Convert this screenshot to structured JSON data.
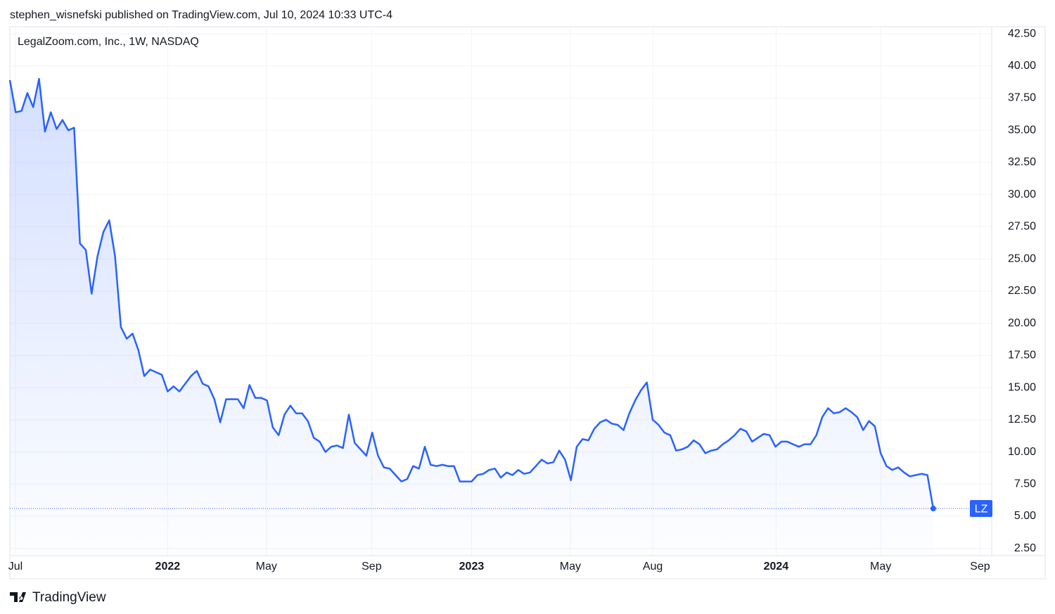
{
  "header": "stephen_wisnefski published on TradingView.com, Jul 10, 2024 10:33 UTC-4",
  "footer": "TradingView",
  "chart_data": {
    "type": "line",
    "title": "LegalZoom.com, Inc., 1W, NASDAQ",
    "series": [
      {
        "name": "LZ",
        "color": "#2962ff",
        "values": [
          38.9,
          36.4,
          36.5,
          37.9,
          36.8,
          39.0,
          34.9,
          36.4,
          35.1,
          35.8,
          35.0,
          35.2,
          26.2,
          25.7,
          22.3,
          25.2,
          27.1,
          28.0,
          25.2,
          19.7,
          18.8,
          19.2,
          17.9,
          15.9,
          16.4,
          16.2,
          16.0,
          14.7,
          15.1,
          14.7,
          15.3,
          15.9,
          16.3,
          15.3,
          15.1,
          14.1,
          12.3,
          14.1,
          14.1,
          14.1,
          13.4,
          15.2,
          14.2,
          14.2,
          14.0,
          11.9,
          11.3,
          12.9,
          13.6,
          13.0,
          13.0,
          12.4,
          11.1,
          10.8,
          10.0,
          10.4,
          10.5,
          10.3,
          12.9,
          10.7,
          10.2,
          9.7,
          11.5,
          9.7,
          8.8,
          8.7,
          8.2,
          7.7,
          7.9,
          8.9,
          8.7,
          10.4,
          9.0,
          8.9,
          9.0,
          8.9,
          8.9,
          7.7,
          7.7,
          7.7,
          8.2,
          8.3,
          8.6,
          8.7,
          8.0,
          8.4,
          8.2,
          8.6,
          8.3,
          8.4,
          8.9,
          9.4,
          9.1,
          9.2,
          10.1,
          9.4,
          7.8,
          10.4,
          11.0,
          10.9,
          11.8,
          12.3,
          12.5,
          12.2,
          12.1,
          11.7,
          13.0,
          14.0,
          14.8,
          15.4,
          12.5,
          12.1,
          11.5,
          11.3,
          10.1,
          10.2,
          10.4,
          10.9,
          10.6,
          9.9,
          10.1,
          10.2,
          10.6,
          10.9,
          11.3,
          11.8,
          11.6,
          10.8,
          11.1,
          11.4,
          11.3,
          10.4,
          10.8,
          10.8,
          10.6,
          10.4,
          10.6,
          10.6,
          11.3,
          12.7,
          13.4,
          13.0,
          13.1,
          13.4,
          13.1,
          12.7,
          11.7,
          12.4,
          12.0,
          9.9,
          8.9,
          8.6,
          8.8,
          8.4,
          8.1,
          8.2,
          8.3,
          8.2,
          5.6
        ]
      }
    ],
    "xlim": [
      0,
      168
    ],
    "xticks": [
      {
        "value": 0.96,
        "label": "Jul"
      },
      {
        "value": 27.0,
        "label": "2022"
      },
      {
        "value": 43.9,
        "label": "May"
      },
      {
        "value": 61.9,
        "label": "Sep"
      },
      {
        "value": 79.0,
        "label": "2023"
      },
      {
        "value": 95.9,
        "label": "May"
      },
      {
        "value": 110.0,
        "label": "Aug"
      },
      {
        "value": 131.1,
        "label": "2024"
      },
      {
        "value": 149.0,
        "label": "May"
      },
      {
        "value": 166.0,
        "label": "Sep"
      }
    ],
    "ylim": [
      2,
      43
    ],
    "yticks": [
      {
        "value": 2.5,
        "label": "2.50"
      },
      {
        "value": 5,
        "label": "5.00"
      },
      {
        "value": 7.5,
        "label": "7.50"
      },
      {
        "value": 10,
        "label": "10.00"
      },
      {
        "value": 12.5,
        "label": "12.50"
      },
      {
        "value": 15,
        "label": "15.00"
      },
      {
        "value": 17.5,
        "label": "17.50"
      },
      {
        "value": 20,
        "label": "20.00"
      },
      {
        "value": 22.5,
        "label": "22.50"
      },
      {
        "value": 25,
        "label": "25.00"
      },
      {
        "value": 27.5,
        "label": "27.50"
      },
      {
        "value": 30,
        "label": "30.00"
      },
      {
        "value": 32.5,
        "label": "32.50"
      },
      {
        "value": 35,
        "label": "35.00"
      },
      {
        "value": 37.5,
        "label": "37.50"
      },
      {
        "value": 40,
        "label": "40.00"
      },
      {
        "value": 42.5,
        "label": "42.50"
      }
    ],
    "grid": true
  }
}
